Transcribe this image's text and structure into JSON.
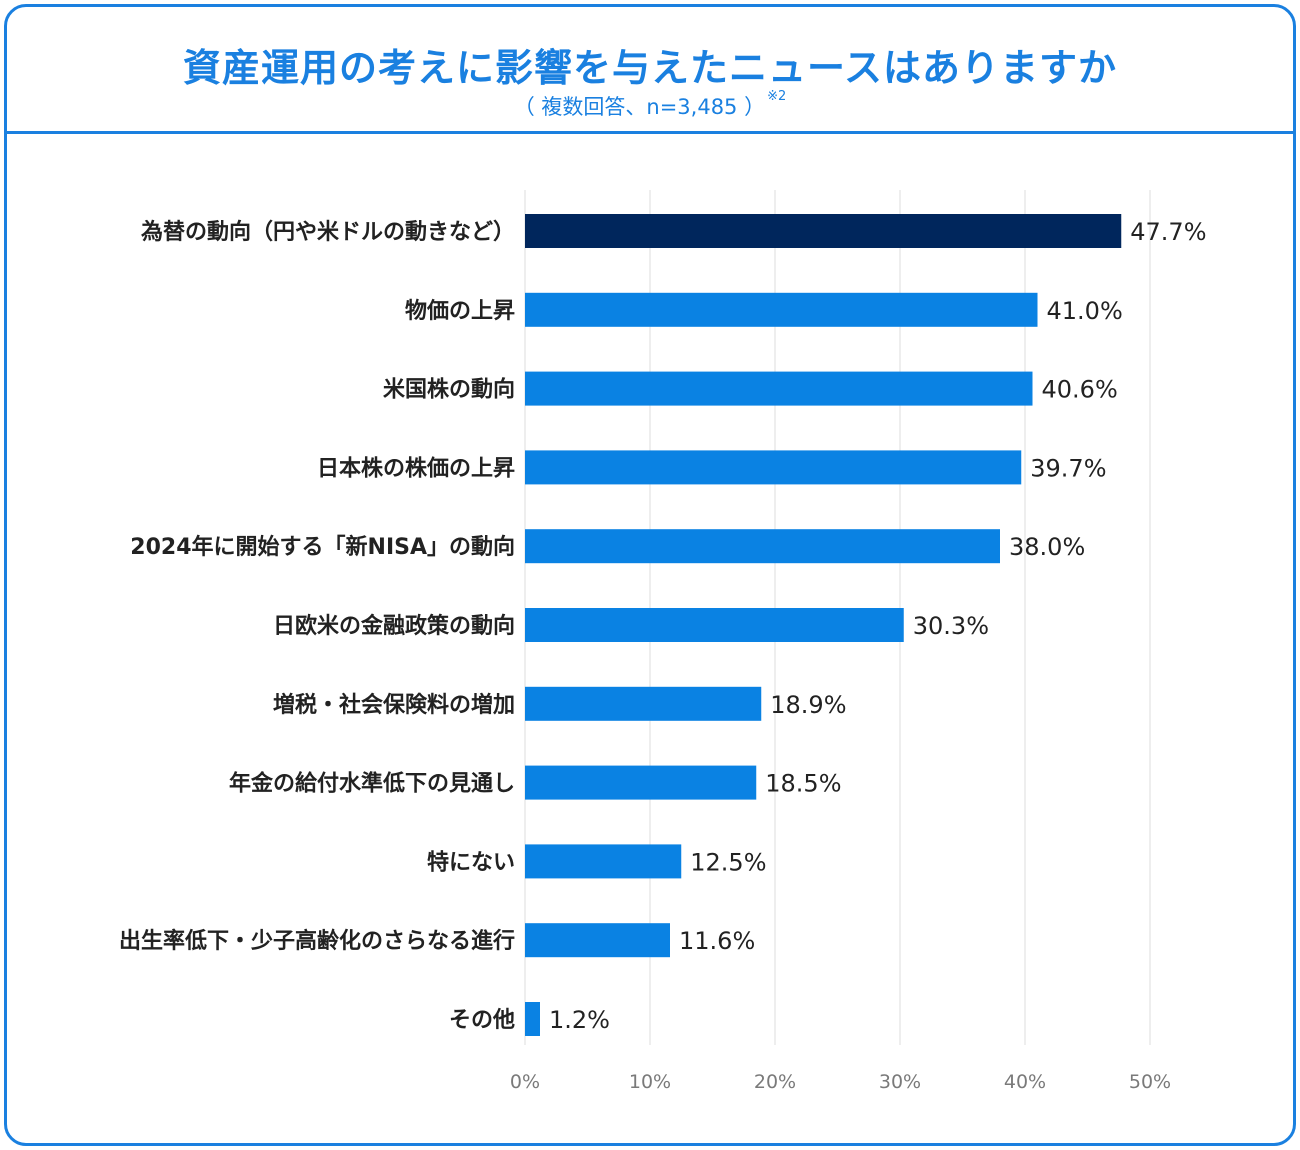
{
  "header": {
    "title": "資産運用の考えに影響を与えたニュースはありますか",
    "subtitle": "（ 複数回答、n=3,485 ）",
    "note_mark": "※2"
  },
  "colors": {
    "accent": "#1a80e0",
    "bar": "#0a82e3",
    "bar_highlight": "#00265c",
    "gridline": "#e8e8e8"
  },
  "chart_data": {
    "type": "bar",
    "orientation": "horizontal",
    "title": "資産運用の考えに影響を与えたニュースはありますか",
    "subtitle": "（ 複数回答、n=3,485 ）※2",
    "xlabel": "",
    "ylabel": "",
    "xlim": [
      0,
      50
    ],
    "ticks": [
      0,
      10,
      20,
      30,
      40,
      50
    ],
    "tick_labels": [
      "0%",
      "10%",
      "20%",
      "30%",
      "40%",
      "50%"
    ],
    "grid": true,
    "categories": [
      "為替の動向（円や米ドルの動きなど）",
      "物価の上昇",
      "米国株の動向",
      "日本株の株価の上昇",
      "2024年に開始する「新NISA」の動向",
      "日欧米の金融政策の動向",
      "増税・社会保険料の増加",
      "年金の給付水準低下の見通し",
      "特にない",
      "出生率低下・少子高齢化のさらなる進行",
      "その他"
    ],
    "values": [
      47.7,
      41.0,
      40.6,
      39.7,
      38.0,
      30.3,
      18.9,
      18.5,
      12.5,
      11.6,
      1.2
    ],
    "value_labels": [
      "47.7%",
      "41.0%",
      "40.6%",
      "39.7%",
      "38.0%",
      "30.3%",
      "18.9%",
      "18.5%",
      "12.5%",
      "11.6%",
      "1.2%"
    ],
    "highlight_index": 0
  }
}
